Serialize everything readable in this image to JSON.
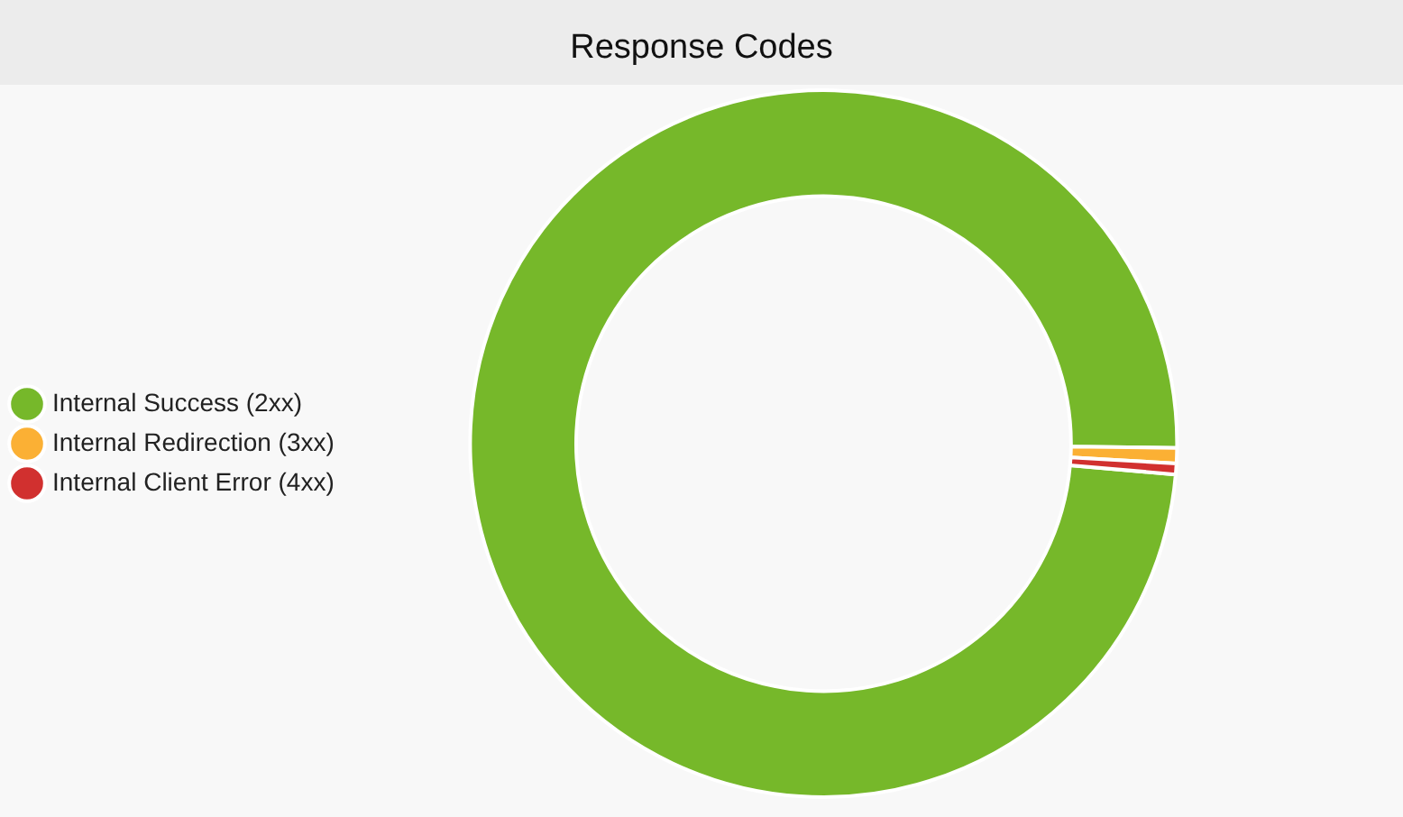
{
  "chart_data": {
    "type": "donut",
    "title": "Response Codes",
    "categories": [
      "Internal Success (2xx)",
      "Internal Redirection (3xx)",
      "Internal Client Error (4xx)"
    ],
    "values": [
      98.8,
      0.7,
      0.5
    ],
    "colors": [
      "#76b82a",
      "#fbb034",
      "#d1302f"
    ],
    "legend": "left"
  }
}
